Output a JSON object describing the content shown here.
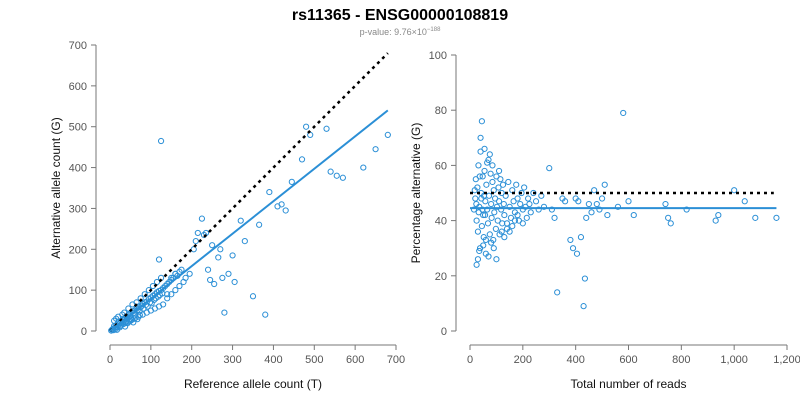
{
  "figure": {
    "title": "rs11365 - ENSG00000108819",
    "pvalue_prefix": "p-value: 9.76×10",
    "pvalue_exponent": "−188"
  },
  "colors": {
    "points": "#2b8fd6",
    "fit": "#2b8fd6",
    "reference": "#000000"
  },
  "chart_data": [
    {
      "type": "scatter",
      "title": "",
      "xlabel": "Reference allele count (T)",
      "ylabel": "Alternative allele count (G)",
      "xlim": [
        0,
        700
      ],
      "ylim": [
        0,
        700
      ],
      "xticks": [
        0,
        100,
        200,
        300,
        400,
        500,
        600,
        700
      ],
      "yticks": [
        0,
        100,
        200,
        300,
        400,
        500,
        600,
        700
      ],
      "xtick_labels": [
        "0",
        "100",
        "200",
        "300",
        "400",
        "500",
        "600",
        "700"
      ],
      "ytick_labels": [
        "0",
        "100",
        "200",
        "300",
        "400",
        "500",
        "600",
        "700"
      ],
      "reference_line": {
        "style": "dotted",
        "x": [
          0,
          680
        ],
        "y": [
          0,
          680
        ]
      },
      "fit_line": {
        "x": [
          0,
          680
        ],
        "y": [
          0,
          540
        ]
      },
      "points": [
        [
          5,
          3
        ],
        [
          8,
          6
        ],
        [
          10,
          12
        ],
        [
          12,
          8
        ],
        [
          15,
          14
        ],
        [
          18,
          10
        ],
        [
          20,
          22
        ],
        [
          22,
          16
        ],
        [
          25,
          20
        ],
        [
          28,
          25
        ],
        [
          30,
          18
        ],
        [
          32,
          30
        ],
        [
          35,
          28
        ],
        [
          38,
          22
        ],
        [
          40,
          35
        ],
        [
          42,
          30
        ],
        [
          45,
          40
        ],
        [
          48,
          36
        ],
        [
          50,
          42
        ],
        [
          52,
          30
        ],
        [
          55,
          48
        ],
        [
          58,
          44
        ],
        [
          60,
          50
        ],
        [
          62,
          38
        ],
        [
          65,
          55
        ],
        [
          68,
          52
        ],
        [
          70,
          60
        ],
        [
          72,
          48
        ],
        [
          75,
          58
        ],
        [
          78,
          62
        ],
        [
          80,
          66
        ],
        [
          82,
          55
        ],
        [
          85,
          70
        ],
        [
          88,
          64
        ],
        [
          90,
          72
        ],
        [
          92,
          60
        ],
        [
          95,
          78
        ],
        [
          98,
          70
        ],
        [
          100,
          82
        ],
        [
          102,
          68
        ],
        [
          105,
          86
        ],
        [
          108,
          76
        ],
        [
          110,
          90
        ],
        [
          112,
          80
        ],
        [
          115,
          95
        ],
        [
          118,
          84
        ],
        [
          120,
          98
        ],
        [
          122,
          88
        ],
        [
          125,
          100
        ],
        [
          128,
          92
        ],
        [
          130,
          105
        ],
        [
          135,
          110
        ],
        [
          140,
          115
        ],
        [
          145,
          120
        ],
        [
          150,
          125
        ],
        [
          155,
          130
        ],
        [
          160,
          140
        ],
        [
          165,
          135
        ],
        [
          170,
          145
        ],
        [
          175,
          150
        ],
        [
          10,
          25
        ],
        [
          15,
          30
        ],
        [
          20,
          35
        ],
        [
          25,
          12
        ],
        [
          30,
          40
        ],
        [
          35,
          45
        ],
        [
          40,
          20
        ],
        [
          45,
          55
        ],
        [
          50,
          25
        ],
        [
          55,
          65
        ],
        [
          60,
          30
        ],
        [
          65,
          70
        ],
        [
          70,
          35
        ],
        [
          75,
          80
        ],
        [
          80,
          40
        ],
        [
          85,
          90
        ],
        [
          90,
          45
        ],
        [
          95,
          100
        ],
        [
          100,
          50
        ],
        [
          105,
          110
        ],
        [
          110,
          55
        ],
        [
          115,
          120
        ],
        [
          120,
          60
        ],
        [
          125,
          130
        ],
        [
          130,
          65
        ],
        [
          140,
          80
        ],
        [
          150,
          90
        ],
        [
          160,
          100
        ],
        [
          170,
          110
        ],
        [
          180,
          120
        ],
        [
          120,
          175
        ],
        [
          125,
          465
        ],
        [
          140,
          90
        ],
        [
          150,
          130
        ],
        [
          160,
          140
        ],
        [
          185,
          130
        ],
        [
          195,
          140
        ],
        [
          205,
          200
        ],
        [
          210,
          220
        ],
        [
          215,
          240
        ],
        [
          225,
          275
        ],
        [
          230,
          235
        ],
        [
          235,
          240
        ],
        [
          240,
          150
        ],
        [
          245,
          125
        ],
        [
          250,
          210
        ],
        [
          255,
          115
        ],
        [
          265,
          180
        ],
        [
          270,
          200
        ],
        [
          275,
          130
        ],
        [
          280,
          45
        ],
        [
          290,
          140
        ],
        [
          300,
          185
        ],
        [
          305,
          120
        ],
        [
          320,
          270
        ],
        [
          330,
          220
        ],
        [
          350,
          85
        ],
        [
          365,
          260
        ],
        [
          380,
          40
        ],
        [
          390,
          340
        ],
        [
          410,
          305
        ],
        [
          420,
          310
        ],
        [
          430,
          295
        ],
        [
          445,
          365
        ],
        [
          470,
          420
        ],
        [
          480,
          500
        ],
        [
          490,
          480
        ],
        [
          530,
          495
        ],
        [
          540,
          390
        ],
        [
          555,
          380
        ],
        [
          570,
          375
        ],
        [
          620,
          400
        ],
        [
          650,
          445
        ],
        [
          680,
          480
        ],
        [
          3,
          1
        ],
        [
          6,
          4
        ],
        [
          9,
          2
        ],
        [
          14,
          5
        ],
        [
          17,
          3
        ],
        [
          24,
          9
        ],
        [
          27,
          14
        ],
        [
          33,
          17
        ],
        [
          37,
          11
        ],
        [
          43,
          19
        ],
        [
          47,
          23
        ],
        [
          53,
          27
        ],
        [
          57,
          21
        ],
        [
          63,
          33
        ],
        [
          67,
          29
        ],
        [
          73,
          39
        ]
      ]
    },
    {
      "type": "scatter",
      "title": "",
      "xlabel": "Total number of reads",
      "ylabel": "Percentage alternative (G)",
      "xlim": [
        0,
        1200
      ],
      "ylim": [
        0,
        100
      ],
      "xticks": [
        0,
        200,
        400,
        600,
        800,
        1000,
        1200
      ],
      "yticks": [
        0,
        20,
        40,
        60,
        80,
        100
      ],
      "xtick_labels": [
        "0",
        "200",
        "400",
        "600",
        "800",
        "1,000",
        "1,200"
      ],
      "ytick_labels": [
        "0",
        "20",
        "40",
        "60",
        "80",
        "100"
      ],
      "reference_line": {
        "style": "dotted",
        "x": [
          0,
          1150
        ],
        "y": [
          50,
          50
        ]
      },
      "fit_line": {
        "x": [
          0,
          1160
        ],
        "y": [
          44.5,
          44.5
        ]
      },
      "points": [
        [
          20,
          48
        ],
        [
          22,
          55
        ],
        [
          25,
          40
        ],
        [
          28,
          52
        ],
        [
          30,
          36
        ],
        [
          32,
          60
        ],
        [
          35,
          45
        ],
        [
          38,
          30
        ],
        [
          40,
          65
        ],
        [
          42,
          50
        ],
        [
          45,
          38
        ],
        [
          48,
          56
        ],
        [
          50,
          42
        ],
        [
          52,
          34
        ],
        [
          55,
          58
        ],
        [
          58,
          47
        ],
        [
          60,
          28
        ],
        [
          62,
          53
        ],
        [
          65,
          44
        ],
        [
          68,
          39
        ],
        [
          70,
          62
        ],
        [
          72,
          49
        ],
        [
          75,
          35
        ],
        [
          78,
          57
        ],
        [
          80,
          46
        ],
        [
          82,
          41
        ],
        [
          85,
          54
        ],
        [
          88,
          33
        ],
        [
          90,
          51
        ],
        [
          92,
          43
        ],
        [
          95,
          48
        ],
        [
          98,
          37
        ],
        [
          100,
          56
        ],
        [
          102,
          45
        ],
        [
          105,
          40
        ],
        [
          108,
          52
        ],
        [
          110,
          47
        ],
        [
          112,
          35
        ],
        [
          115,
          55
        ],
        [
          118,
          44
        ],
        [
          120,
          50
        ],
        [
          122,
          39
        ],
        [
          125,
          53
        ],
        [
          128,
          46
        ],
        [
          130,
          42
        ],
        [
          135,
          49
        ],
        [
          140,
          37
        ],
        [
          145,
          54
        ],
        [
          150,
          45
        ],
        [
          155,
          41
        ],
        [
          160,
          51
        ],
        [
          165,
          47
        ],
        [
          170,
          43
        ],
        [
          175,
          53
        ],
        [
          180,
          48
        ],
        [
          185,
          40
        ],
        [
          190,
          46
        ],
        [
          195,
          50
        ],
        [
          200,
          44
        ],
        [
          205,
          52
        ],
        [
          210,
          45
        ],
        [
          215,
          41
        ],
        [
          220,
          48
        ],
        [
          225,
          46
        ],
        [
          230,
          43
        ],
        [
          240,
          50
        ],
        [
          250,
          47
        ],
        [
          260,
          44
        ],
        [
          270,
          49
        ],
        [
          280,
          45
        ],
        [
          25,
          24
        ],
        [
          30,
          26
        ],
        [
          35,
          29
        ],
        [
          40,
          70
        ],
        [
          45,
          76
        ],
        [
          50,
          31
        ],
        [
          55,
          66
        ],
        [
          60,
          33
        ],
        [
          65,
          61
        ],
        [
          70,
          27
        ],
        [
          75,
          64
        ],
        [
          80,
          32
        ],
        [
          85,
          60
        ],
        [
          90,
          30
        ],
        [
          100,
          26
        ],
        [
          110,
          58
        ],
        [
          120,
          36
        ],
        [
          130,
          34
        ],
        [
          140,
          39
        ],
        [
          150,
          36
        ],
        [
          160,
          38
        ],
        [
          170,
          40
        ],
        [
          180,
          42
        ],
        [
          200,
          39
        ],
        [
          300,
          59
        ],
        [
          310,
          44
        ],
        [
          320,
          41
        ],
        [
          330,
          14
        ],
        [
          350,
          48
        ],
        [
          360,
          47
        ],
        [
          380,
          33
        ],
        [
          390,
          30
        ],
        [
          400,
          48
        ],
        [
          405,
          28
        ],
        [
          410,
          47
        ],
        [
          420,
          34
        ],
        [
          430,
          9
        ],
        [
          435,
          19
        ],
        [
          440,
          41
        ],
        [
          450,
          46
        ],
        [
          460,
          43
        ],
        [
          470,
          51
        ],
        [
          480,
          46
        ],
        [
          490,
          44
        ],
        [
          500,
          48
        ],
        [
          510,
          53
        ],
        [
          520,
          42
        ],
        [
          560,
          45
        ],
        [
          580,
          79
        ],
        [
          600,
          47
        ],
        [
          620,
          42
        ],
        [
          740,
          46
        ],
        [
          750,
          41
        ],
        [
          760,
          39
        ],
        [
          820,
          44
        ],
        [
          930,
          40
        ],
        [
          940,
          42
        ],
        [
          1000,
          51
        ],
        [
          1040,
          47
        ],
        [
          1080,
          41
        ],
        [
          1160,
          41
        ],
        [
          15,
          44
        ],
        [
          18,
          51
        ],
        [
          24,
          46
        ],
        [
          33,
          43
        ],
        [
          37,
          56
        ],
        [
          43,
          48
        ],
        [
          47,
          44
        ],
        [
          53,
          49
        ],
        [
          57,
          42
        ]
      ]
    }
  ]
}
